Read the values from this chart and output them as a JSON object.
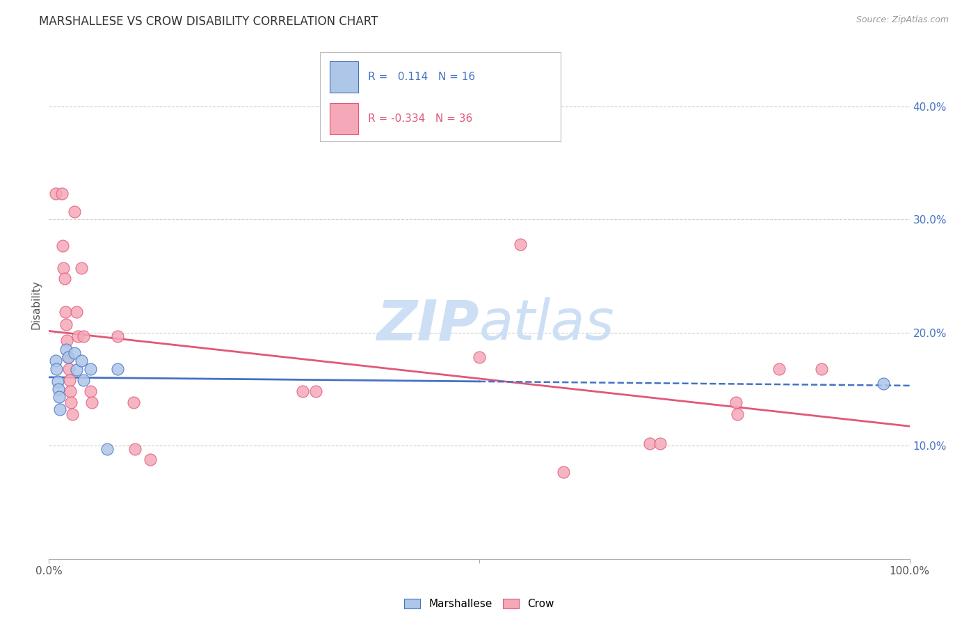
{
  "title": "MARSHALLESE VS CROW DISABILITY CORRELATION CHART",
  "source": "Source: ZipAtlas.com",
  "ylabel": "Disability",
  "xlim": [
    0,
    1
  ],
  "ylim": [
    0.0,
    0.45
  ],
  "yticks": [
    0.1,
    0.2,
    0.3,
    0.4
  ],
  "ytick_labels": [
    "10.0%",
    "20.0%",
    "30.0%",
    "40.0%"
  ],
  "marshallese_R": 0.114,
  "marshallese_N": 16,
  "crow_R": -0.334,
  "crow_N": 36,
  "marshallese_color": "#aec6e8",
  "crow_color": "#f5a8b8",
  "regression_marshallese_color": "#4472c4",
  "regression_crow_color": "#e05878",
  "marshallese_points": [
    [
      0.008,
      0.175
    ],
    [
      0.009,
      0.168
    ],
    [
      0.01,
      0.157
    ],
    [
      0.011,
      0.15
    ],
    [
      0.012,
      0.143
    ],
    [
      0.013,
      0.132
    ],
    [
      0.02,
      0.185
    ],
    [
      0.022,
      0.178
    ],
    [
      0.03,
      0.182
    ],
    [
      0.032,
      0.167
    ],
    [
      0.038,
      0.175
    ],
    [
      0.04,
      0.158
    ],
    [
      0.048,
      0.168
    ],
    [
      0.068,
      0.097
    ],
    [
      0.08,
      0.168
    ],
    [
      0.97,
      0.155
    ]
  ],
  "crow_points": [
    [
      0.008,
      0.323
    ],
    [
      0.015,
      0.323
    ],
    [
      0.016,
      0.277
    ],
    [
      0.017,
      0.257
    ],
    [
      0.018,
      0.248
    ],
    [
      0.019,
      0.218
    ],
    [
      0.02,
      0.207
    ],
    [
      0.021,
      0.193
    ],
    [
      0.022,
      0.178
    ],
    [
      0.023,
      0.168
    ],
    [
      0.024,
      0.158
    ],
    [
      0.025,
      0.148
    ],
    [
      0.026,
      0.138
    ],
    [
      0.027,
      0.128
    ],
    [
      0.03,
      0.307
    ],
    [
      0.032,
      0.218
    ],
    [
      0.034,
      0.197
    ],
    [
      0.038,
      0.257
    ],
    [
      0.04,
      0.197
    ],
    [
      0.048,
      0.148
    ],
    [
      0.05,
      0.138
    ],
    [
      0.08,
      0.197
    ],
    [
      0.098,
      0.138
    ],
    [
      0.1,
      0.097
    ],
    [
      0.118,
      0.088
    ],
    [
      0.295,
      0.148
    ],
    [
      0.31,
      0.148
    ],
    [
      0.5,
      0.178
    ],
    [
      0.548,
      0.278
    ],
    [
      0.598,
      0.077
    ],
    [
      0.698,
      0.102
    ],
    [
      0.71,
      0.102
    ],
    [
      0.798,
      0.138
    ],
    [
      0.8,
      0.128
    ],
    [
      0.848,
      0.168
    ],
    [
      0.898,
      0.168
    ]
  ],
  "background_color": "#ffffff",
  "grid_color": "#cccccc",
  "watermark_color": "#ccdff5"
}
